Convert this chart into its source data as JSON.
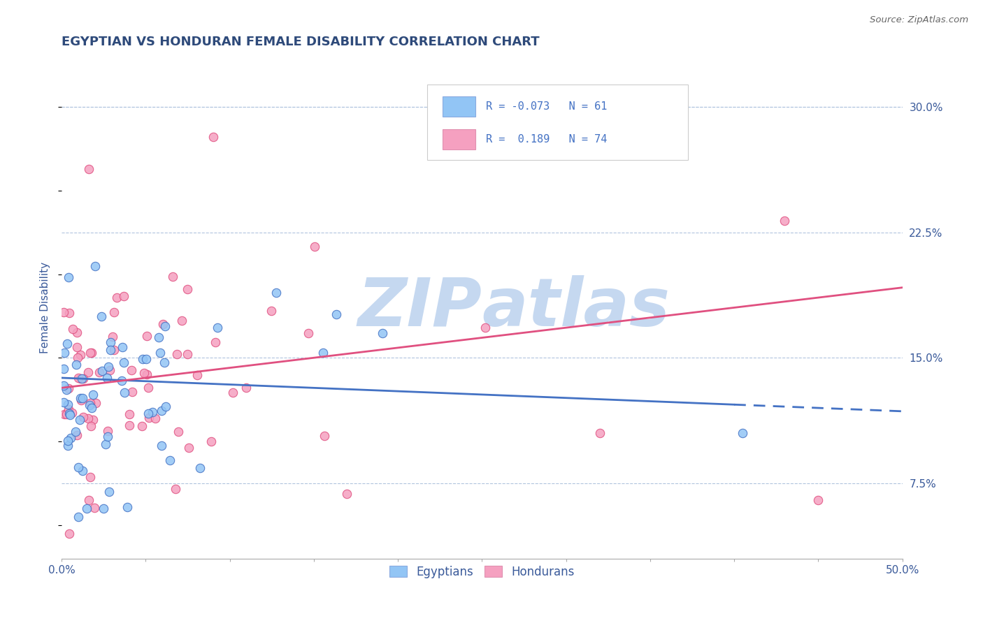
{
  "title": "EGYPTIAN VS HONDURAN FEMALE DISABILITY CORRELATION CHART",
  "source": "Source: ZipAtlas.com",
  "ylabel": "Female Disability",
  "xlim": [
    0.0,
    0.5
  ],
  "ylim": [
    0.03,
    0.33
  ],
  "yticks_right": [
    0.075,
    0.15,
    0.225,
    0.3
  ],
  "yticklabels_right": [
    "7.5%",
    "15.0%",
    "22.5%",
    "30.0%"
  ],
  "legend_label1": "Egyptians",
  "legend_label2": "Hondurans",
  "color_egyptian": "#92c5f5",
  "color_honduran": "#f5a0c0",
  "color_line_egyptian": "#4472c4",
  "color_line_honduran": "#e05080",
  "background_color": "#ffffff",
  "watermark_color": "#c5d8f0",
  "title_color": "#2e4a7a",
  "axis_label_color": "#3a5a9a",
  "source_color": "#666666",
  "grid_color": "#b0c4de",
  "eg_trend_start_x": 0.0,
  "eg_trend_end_solid_x": 0.4,
  "eg_trend_end_dash_x": 0.5,
  "eg_trend_start_y": 0.138,
  "eg_trend_end_y": 0.122,
  "ho_trend_start_x": 0.0,
  "ho_trend_end_x": 0.5,
  "ho_trend_start_y": 0.132,
  "ho_trend_end_y": 0.192
}
